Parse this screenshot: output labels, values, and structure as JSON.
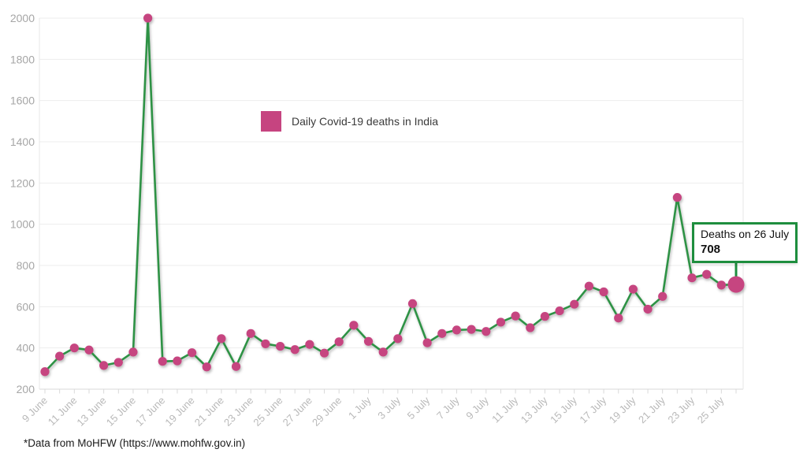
{
  "chart": {
    "legend": {
      "label": "Daily Covid-19 deaths in India"
    },
    "annotation": {
      "line1": "Deaths on 26 July",
      "value": "708"
    },
    "footer": "*Data from MoHFW (https://www.mohfw.gov.in)",
    "colors": {
      "series_marker": "#c64480",
      "series_line": "#2e9245",
      "annotation_border": "#1e8e3e",
      "grid_line": "#ededed",
      "axis_line": "#d9d9d9",
      "side_border": "#e7e7e7",
      "y_label_text": "#a6a6a6",
      "x_label_text": "#b9b9b9",
      "legend_text": "#3a3a3a",
      "footer_text": "#1b1b1b"
    }
  },
  "chart_data": {
    "type": "line",
    "title": "Daily Covid-19 deaths in India",
    "categories": [
      "9 June",
      "10 June",
      "11 June",
      "12 June",
      "13 June",
      "14 June",
      "15 June",
      "16 June",
      "17 June",
      "18 June",
      "19 June",
      "20 June",
      "21 June",
      "22 June",
      "23 June",
      "24 June",
      "25 June",
      "26 June",
      "27 June",
      "28 June",
      "29 June",
      "30 June",
      "1 July",
      "2 July",
      "3 July",
      "4 July",
      "5 July",
      "6 July",
      "7 July",
      "8 July",
      "9 July",
      "10 July",
      "11 July",
      "12 July",
      "13 July",
      "14 July",
      "15 July",
      "16 July",
      "17 July",
      "18 July",
      "19 July",
      "20 July",
      "21 July",
      "22 July",
      "23 July",
      "24 July",
      "25 July",
      "26 July"
    ],
    "values": [
      285,
      360,
      400,
      390,
      315,
      330,
      380,
      2000,
      335,
      337,
      377,
      308,
      445,
      310,
      470,
      420,
      408,
      392,
      417,
      375,
      430,
      510,
      432,
      380,
      445,
      615,
      425,
      470,
      487,
      490,
      480,
      525,
      555,
      498,
      553,
      580,
      612,
      700,
      672,
      545,
      685,
      588,
      650,
      1130,
      740,
      757,
      705,
      708
    ],
    "x_labels_every": 2,
    "y_ticks": [
      200,
      400,
      600,
      800,
      1000,
      1200,
      1400,
      1600,
      1800,
      2000
    ],
    "ylim": [
      200,
      2000
    ],
    "grid": "horizontal",
    "legend_position": "top-center",
    "annotation": {
      "text": "Deaths on 26 July",
      "value": 708,
      "category": "26 July"
    },
    "highlight_point": {
      "category": "26 July",
      "value": 708
    }
  }
}
